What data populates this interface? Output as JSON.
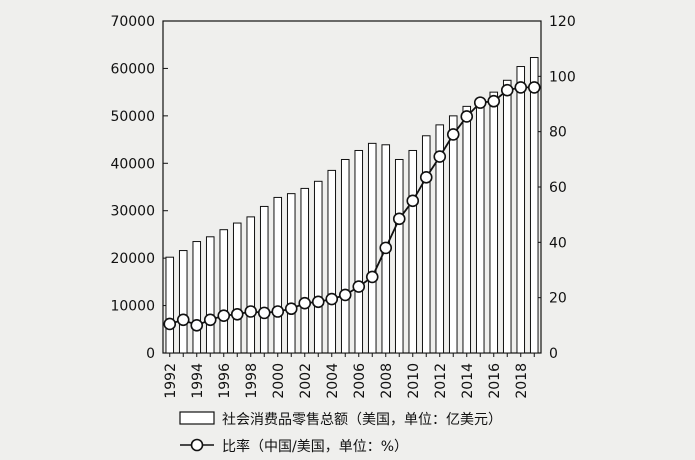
{
  "chart_data": {
    "type": "bar+line",
    "categories": [
      "1992",
      "1993",
      "1994",
      "1995",
      "1996",
      "1997",
      "1998",
      "1999",
      "2000",
      "2001",
      "2002",
      "2003",
      "2004",
      "2005",
      "2006",
      "2007",
      "2008",
      "2009",
      "2010",
      "2011",
      "2012",
      "2013",
      "2014",
      "2015",
      "2016",
      "2017",
      "2018",
      "2019"
    ],
    "x_tick_labels": [
      "1992",
      "1994",
      "1996",
      "1998",
      "2000",
      "2002",
      "2004",
      "2006",
      "2008",
      "2010",
      "2012",
      "2014",
      "2016",
      "2018"
    ],
    "series": [
      {
        "name": "社会消费品零售总额（美国，单位：亿美元）",
        "type": "bar",
        "axis": "left",
        "values": [
          20200,
          21600,
          23500,
          24500,
          26000,
          27400,
          28700,
          30900,
          32800,
          33600,
          34700,
          36200,
          38500,
          40800,
          42700,
          44200,
          43900,
          40800,
          42700,
          45800,
          48100,
          50000,
          52000,
          53000,
          55000,
          57500,
          60400,
          62300
        ]
      },
      {
        "name": "比率（中国/美国，单位：%）",
        "type": "line",
        "axis": "right",
        "marker": "open-circle",
        "values": [
          10.5,
          12,
          10,
          12,
          13.5,
          14,
          15,
          14.5,
          15,
          16,
          18,
          18.5,
          19.5,
          21,
          24,
          27.5,
          38,
          48.5,
          55,
          63.5,
          71,
          79,
          85.5,
          90.5,
          91,
          95,
          96,
          96
        ]
      }
    ],
    "y_left": {
      "ylim": [
        0,
        70000
      ],
      "ticks": [
        "0",
        "10000",
        "20000",
        "30000",
        "40000",
        "50000",
        "60000",
        "70000"
      ]
    },
    "y_right": {
      "ylim": [
        0,
        120
      ],
      "ticks": [
        "0",
        "20",
        "40",
        "60",
        "80",
        "100",
        "120"
      ]
    },
    "legend": {
      "placement": "bottom-center",
      "bar_label": "社会消费品零售总额（美国，单位：亿美元）",
      "line_label": "比率（中国/美国，单位：%）"
    },
    "grid": false,
    "title": "",
    "xlabel": "",
    "ylabel": ""
  }
}
